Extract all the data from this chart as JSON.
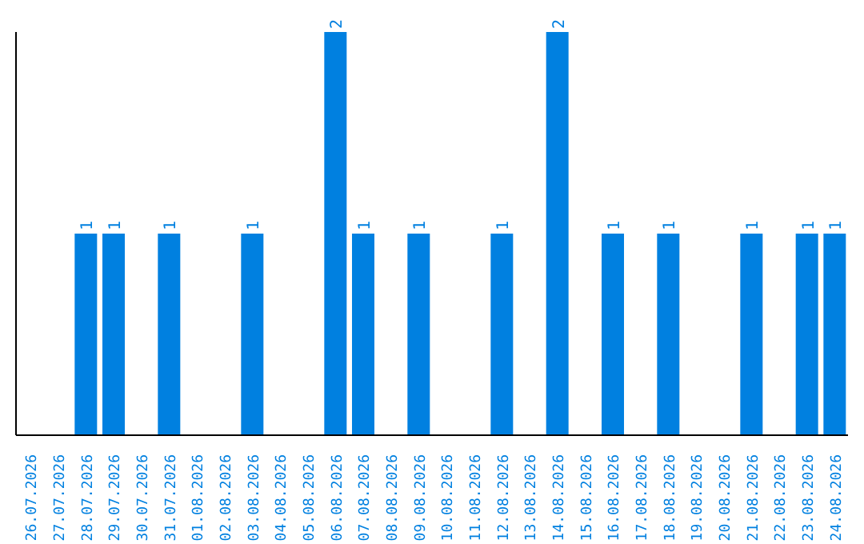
{
  "chart_data": {
    "type": "bar",
    "categories": [
      "26.07.2026",
      "27.07.2026",
      "28.07.2026",
      "29.07.2026",
      "30.07.2026",
      "31.07.2026",
      "01.08.2026",
      "02.08.2026",
      "03.08.2026",
      "04.08.2026",
      "05.08.2026",
      "06.08.2026",
      "07.08.2026",
      "08.08.2026",
      "09.08.2026",
      "10.08.2026",
      "11.08.2026",
      "12.08.2026",
      "13.08.2026",
      "14.08.2026",
      "15.08.2026",
      "16.08.2026",
      "17.08.2026",
      "18.08.2026",
      "19.08.2026",
      "20.08.2026",
      "21.08.2026",
      "22.08.2026",
      "23.08.2026",
      "24.08.2026"
    ],
    "values": [
      0,
      0,
      1,
      1,
      0,
      1,
      0,
      0,
      1,
      0,
      0,
      2,
      1,
      0,
      1,
      0,
      0,
      1,
      0,
      2,
      0,
      1,
      0,
      1,
      0,
      0,
      1,
      0,
      1,
      1
    ],
    "value_labels": [
      null,
      null,
      "1",
      "1",
      null,
      "1",
      null,
      null,
      "1",
      null,
      null,
      "2",
      "1",
      null,
      "1",
      null,
      null,
      "1",
      null,
      "2",
      null,
      "1",
      null,
      "1",
      null,
      null,
      "1",
      null,
      "1",
      "1"
    ],
    "color": "#0080e0",
    "grid": false,
    "legend": false
  }
}
